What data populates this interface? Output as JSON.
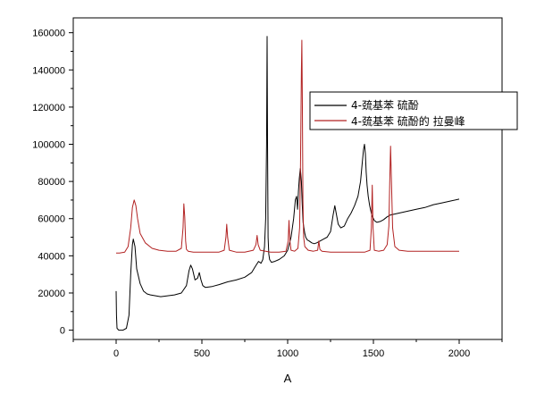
{
  "chart_data": {
    "type": "line",
    "title": "",
    "xlabel": "A",
    "ylabel": "",
    "xlim": [
      -250,
      2250
    ],
    "ylim": [
      -5000,
      168000
    ],
    "xticks": [
      0,
      500,
      1000,
      1500,
      2000
    ],
    "yticks": [
      0,
      20000,
      40000,
      60000,
      80000,
      100000,
      120000,
      140000,
      160000
    ],
    "grid": false,
    "legend": "top-right",
    "series": [
      {
        "name": "4-巯基苯 硫酚",
        "color": "#000000",
        "x": [
          0,
          2,
          5,
          15,
          40,
          60,
          75,
          85,
          95,
          100,
          110,
          120,
          140,
          160,
          180,
          200,
          230,
          260,
          300,
          340,
          380,
          410,
          425,
          435,
          445,
          460,
          475,
          485,
          495,
          505,
          520,
          560,
          600,
          650,
          700,
          750,
          790,
          810,
          830,
          845,
          855,
          865,
          872,
          877,
          880,
          883,
          886,
          890,
          895,
          905,
          925,
          950,
          980,
          1000,
          1020,
          1035,
          1045,
          1052,
          1058,
          1063,
          1068,
          1074,
          1080,
          1085,
          1090,
          1095,
          1100,
          1105,
          1115,
          1125,
          1140,
          1155,
          1170,
          1190,
          1210,
          1230,
          1250,
          1265,
          1275,
          1285,
          1295,
          1310,
          1330,
          1350,
          1370,
          1390,
          1410,
          1425,
          1435,
          1442,
          1448,
          1453,
          1458,
          1463,
          1470,
          1478,
          1490,
          1505,
          1520,
          1540,
          1560,
          1580,
          1600,
          1650,
          1700,
          1750,
          1800,
          1850,
          1900,
          1950,
          2000
        ],
        "y": [
          21000,
          8000,
          1000,
          0,
          0,
          1000,
          8000,
          30000,
          46000,
          49000,
          45000,
          33000,
          25000,
          21000,
          19500,
          19000,
          18500,
          18000,
          18500,
          19000,
          20000,
          24000,
          32000,
          35000,
          33000,
          27000,
          28000,
          31000,
          27000,
          24000,
          23000,
          23500,
          24500,
          26000,
          27000,
          28500,
          31000,
          34000,
          37000,
          36000,
          38000,
          45000,
          60000,
          100000,
          158000,
          100000,
          50000,
          41000,
          38000,
          36500,
          37000,
          38000,
          40000,
          43000,
          50000,
          60000,
          70000,
          72000,
          65000,
          75000,
          82000,
          87000,
          80000,
          68000,
          58000,
          55000,
          52000,
          50000,
          48500,
          48000,
          47000,
          46500,
          47000,
          48000,
          49000,
          50000,
          53000,
          62000,
          67000,
          62000,
          57000,
          55000,
          56000,
          60000,
          63000,
          67000,
          72000,
          80000,
          90000,
          97000,
          100000,
          95000,
          85000,
          78000,
          72000,
          67000,
          62000,
          59000,
          58000,
          58500,
          59500,
          61000,
          62000,
          63000,
          64000,
          65000,
          66000,
          67500,
          68500,
          69500,
          70500
        ]
      },
      {
        "name": "4-巯基苯 硫酚的 拉曼峰",
        "color": "#b22222",
        "x": [
          0,
          20,
          50,
          70,
          85,
          95,
          105,
          115,
          125,
          140,
          170,
          210,
          250,
          300,
          350,
          380,
          390,
          395,
          400,
          405,
          410,
          420,
          450,
          500,
          550,
          600,
          630,
          640,
          645,
          650,
          660,
          700,
          750,
          800,
          815,
          822,
          828,
          840,
          900,
          950,
          990,
          1003,
          1008,
          1013,
          1020,
          1040,
          1060,
          1070,
          1075,
          1080,
          1083,
          1086,
          1089,
          1093,
          1100,
          1120,
          1150,
          1175,
          1182,
          1188,
          1200,
          1250,
          1300,
          1350,
          1400,
          1450,
          1480,
          1488,
          1493,
          1498,
          1505,
          1530,
          1560,
          1580,
          1590,
          1595,
          1600,
          1605,
          1612,
          1625,
          1650,
          1700,
          1800,
          1900,
          2000
        ],
        "y": [
          41500,
          41500,
          42000,
          45000,
          55000,
          66000,
          70000,
          67000,
          60000,
          52000,
          47000,
          44000,
          43000,
          42500,
          42500,
          44000,
          55000,
          68000,
          61000,
          48000,
          43500,
          42500,
          42000,
          42000,
          42000,
          42000,
          43000,
          50000,
          57000,
          50000,
          43000,
          42000,
          42000,
          43000,
          46000,
          51000,
          46000,
          43000,
          42000,
          42000,
          42500,
          48000,
          59000,
          48000,
          43000,
          42500,
          44000,
          55000,
          90000,
          140000,
          156000,
          120000,
          70000,
          50000,
          45000,
          43000,
          42500,
          43000,
          48000,
          43500,
          42500,
          42000,
          42000,
          42000,
          42000,
          42000,
          43000,
          55000,
          78000,
          55000,
          43000,
          42500,
          43000,
          46000,
          56000,
          78000,
          99000,
          80000,
          55000,
          45000,
          43000,
          42500,
          42500,
          42500,
          42500
        ]
      }
    ]
  }
}
